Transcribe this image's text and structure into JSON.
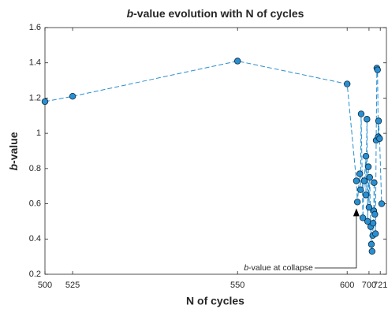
{
  "chart_data": {
    "type": "line",
    "title_parts": [
      "b",
      "-value evolution with N of cycles"
    ],
    "xlabel": "N of cycles",
    "ylabel_parts": [
      "b",
      "-value"
    ],
    "annotation_parts": [
      "b",
      "-value at collapse"
    ],
    "xlim": [
      0,
      100
    ],
    "ylim": [
      0.2,
      1.6
    ],
    "xticks": [
      {
        "value": 0,
        "label": "500"
      },
      {
        "value": 8.1,
        "label": "525"
      },
      {
        "value": 56.4,
        "label": "550"
      },
      {
        "value": 88.5,
        "label": "600"
      },
      {
        "value": 94.9,
        "label": "700"
      },
      {
        "value": 98.2,
        "label": "721"
      }
    ],
    "yticks": [
      0.2,
      0.4,
      0.6,
      0.8,
      1,
      1.2,
      1.4,
      1.6
    ],
    "series": [
      {
        "color": "#2a8fd0",
        "x": [
          0,
          8.1,
          56.4,
          88.5,
          91.2,
          91.5,
          92.2,
          92.4,
          92.6,
          93.1,
          93.5,
          94.0,
          94.0,
          94.3,
          94.5,
          94.7,
          94.9,
          95.1,
          95.4,
          95.6,
          95.8,
          96.0,
          96.1,
          96.3,
          96.4,
          96.6,
          96.8,
          97.0,
          97.2,
          97.4,
          97.6,
          97.7,
          98.0,
          98.6
        ],
        "values": [
          1.18,
          1.21,
          1.41,
          1.28,
          0.73,
          0.61,
          0.77,
          0.68,
          1.11,
          0.52,
          0.73,
          0.87,
          0.65,
          1.08,
          0.5,
          0.81,
          0.58,
          0.75,
          0.47,
          0.37,
          0.33,
          0.42,
          0.49,
          0.56,
          0.72,
          0.54,
          0.43,
          0.96,
          1.37,
          1.36,
          0.98,
          1.07,
          0.97,
          0.6
        ]
      }
    ]
  }
}
